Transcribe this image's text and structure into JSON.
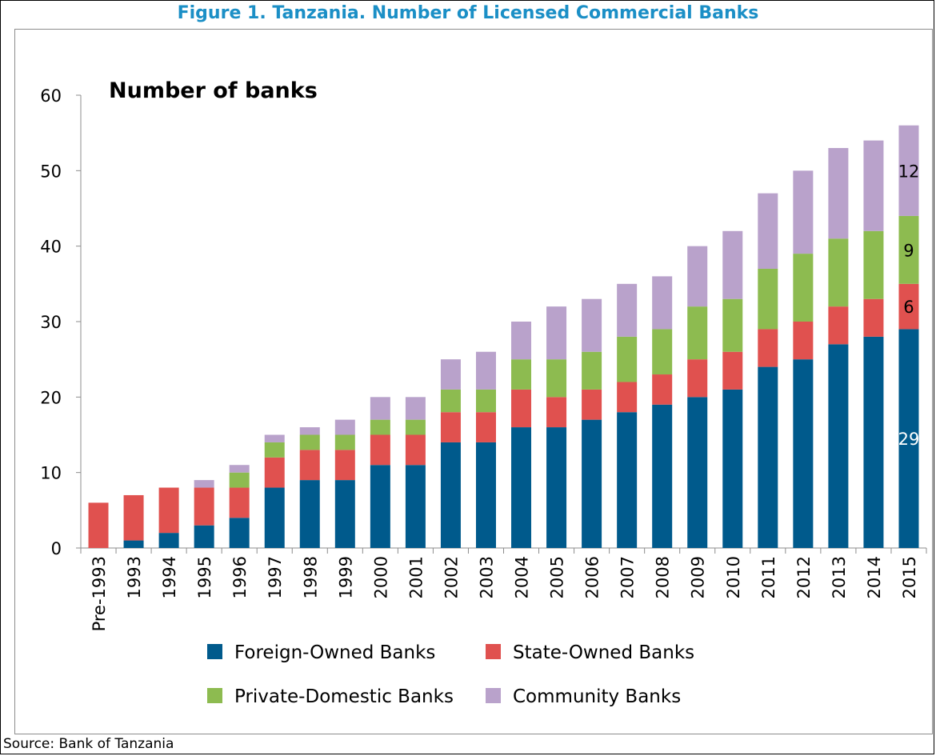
{
  "figure": {
    "title": "Figure 1. Tanzania. Number of Licensed Commercial Banks",
    "source": "Source: Bank of Tanzania"
  },
  "colors": {
    "foreign": "#005a8c",
    "state": "#e0514f",
    "private": "#8dbb50",
    "community": "#b9a2cb",
    "title": "#1b8fc6"
  },
  "chart_data": {
    "type": "bar",
    "stacked": true,
    "title": "Number of banks",
    "xlabel": "",
    "ylabel": "",
    "ylim": [
      0,
      60
    ],
    "yticks": [
      0,
      10,
      20,
      30,
      40,
      50,
      60
    ],
    "grid": false,
    "legend_position": "bottom",
    "categories": [
      "Pre-1993",
      "1993",
      "1994",
      "1995",
      "1996",
      "1997",
      "1998",
      "1999",
      "2000",
      "2001",
      "2002",
      "2003",
      "2004",
      "2005",
      "2006",
      "2007",
      "2008",
      "2009",
      "2010",
      "2011",
      "2012",
      "2013",
      "2014",
      "2015"
    ],
    "series": [
      {
        "name": "Foreign-Owned Banks",
        "color": "#005a8c",
        "values": [
          0,
          1,
          2,
          3,
          4,
          8,
          9,
          9,
          11,
          11,
          14,
          14,
          16,
          16,
          17,
          18,
          19,
          20,
          21,
          24,
          25,
          27,
          28,
          29
        ]
      },
      {
        "name": "State-Owned Banks",
        "color": "#e0514f",
        "values": [
          6,
          6,
          6,
          5,
          4,
          4,
          4,
          4,
          4,
          4,
          4,
          4,
          5,
          4,
          4,
          4,
          4,
          5,
          5,
          5,
          5,
          5,
          5,
          6
        ]
      },
      {
        "name": "Private-Domestic Banks",
        "color": "#8dbb50",
        "values": [
          0,
          0,
          0,
          0,
          2,
          2,
          2,
          2,
          2,
          2,
          3,
          3,
          4,
          5,
          5,
          6,
          6,
          7,
          7,
          8,
          9,
          9,
          9,
          9
        ]
      },
      {
        "name": "Community Banks",
        "color": "#b9a2cb",
        "values": [
          0,
          0,
          0,
          1,
          1,
          1,
          1,
          2,
          3,
          3,
          4,
          5,
          5,
          7,
          7,
          7,
          7,
          8,
          9,
          10,
          11,
          12,
          12,
          12
        ]
      }
    ],
    "data_labels": [
      {
        "category": "2015",
        "series": "Foreign-Owned Banks",
        "text": "29"
      },
      {
        "category": "2015",
        "series": "State-Owned Banks",
        "text": "6"
      },
      {
        "category": "2015",
        "series": "Private-Domestic Banks",
        "text": "9"
      },
      {
        "category": "2015",
        "series": "Community Banks",
        "text": "12"
      }
    ]
  }
}
